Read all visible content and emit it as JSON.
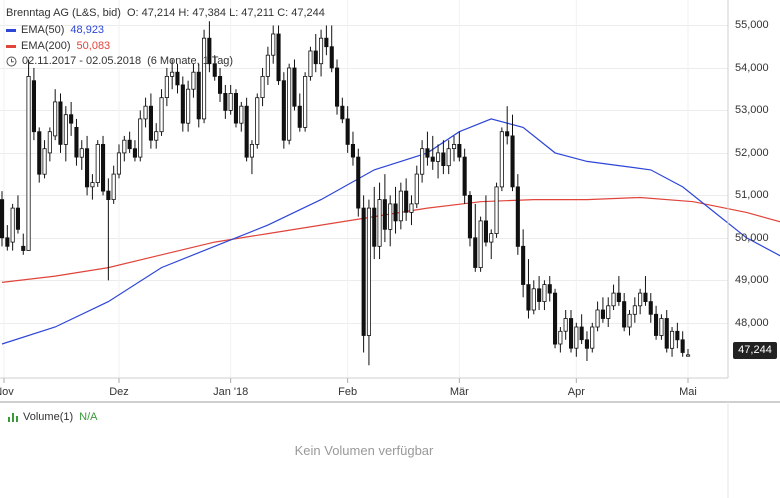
{
  "header": {
    "instrument": "Brenntag AG (L&S, bid)",
    "ohlc": "O: 47,214  H: 47,384  L: 47,211  C: 47,244",
    "ema50_label": "EMA(50)",
    "ema50_value": "48,923",
    "ema200_label": "EMA(200)",
    "ema200_value": "50,083",
    "period": "02.11.2017 - 02.05.2018",
    "period_detail": "(6 Monate, 1 Tag)"
  },
  "colors": {
    "ema50": "#2d46d6",
    "ema200": "#e0443a",
    "candle": "#111111",
    "volume": "#3a9a3a"
  },
  "last_price_badge": "47,244",
  "volume": {
    "title": "Volume(1)",
    "value": "N/A",
    "empty_message": "Kein Volumen verfügbar"
  },
  "chart_data": {
    "type": "candlestick",
    "y_axis": {
      "ticks": [
        48000,
        49000,
        50000,
        51000,
        52000,
        53000,
        54000,
        55000
      ],
      "tick_labels": [
        "48,000",
        "49,000",
        "50,000",
        "51,000",
        "52,000",
        "53,000",
        "54,000",
        "55,000"
      ],
      "range": [
        46700,
        55600
      ],
      "position": "right"
    },
    "x_axis": {
      "labels": [
        "Nov",
        "Dez",
        "Jan '18",
        "Feb",
        "Mär",
        "Apr",
        "Mai"
      ]
    },
    "grid": true,
    "series": [
      {
        "name": "EMA(50)",
        "type": "line",
        "points": [
          [
            0,
            47500
          ],
          [
            10,
            47900
          ],
          [
            20,
            48500
          ],
          [
            30,
            49300
          ],
          [
            40,
            49800
          ],
          [
            50,
            50300
          ],
          [
            60,
            50900
          ],
          [
            70,
            51600
          ],
          [
            80,
            52000
          ],
          [
            86,
            52500
          ],
          [
            92,
            52800
          ],
          [
            98,
            52600
          ],
          [
            104,
            52000
          ],
          [
            110,
            51800
          ],
          [
            116,
            51700
          ],
          [
            122,
            51600
          ],
          [
            128,
            51200
          ],
          [
            134,
            50600
          ],
          [
            140,
            50000
          ],
          [
            146,
            49600
          ],
          [
            152,
            49200
          ],
          [
            156,
            48923
          ]
        ]
      },
      {
        "name": "EMA(200)",
        "type": "line",
        "points": [
          [
            0,
            48950
          ],
          [
            10,
            49100
          ],
          [
            20,
            49300
          ],
          [
            30,
            49600
          ],
          [
            40,
            49900
          ],
          [
            50,
            50100
          ],
          [
            60,
            50300
          ],
          [
            70,
            50500
          ],
          [
            80,
            50700
          ],
          [
            90,
            50850
          ],
          [
            100,
            50900
          ],
          [
            110,
            50900
          ],
          [
            120,
            50950
          ],
          [
            130,
            50850
          ],
          [
            140,
            50600
          ],
          [
            150,
            50250
          ],
          [
            156,
            50083
          ]
        ]
      },
      {
        "name": "Brenntag AG",
        "type": "candlestick",
        "ohlc": [
          [
            50900,
            51100,
            49800,
            50000
          ],
          [
            50000,
            50300,
            49700,
            49800
          ],
          [
            49900,
            50800,
            49700,
            50700
          ],
          [
            50700,
            51000,
            50100,
            50200
          ],
          [
            49800,
            50100,
            49600,
            49700
          ],
          [
            49700,
            54200,
            49700,
            53800
          ],
          [
            53700,
            54000,
            52300,
            52500
          ],
          [
            52500,
            52600,
            51300,
            51500
          ],
          [
            51500,
            52300,
            51400,
            52100
          ],
          [
            52000,
            52600,
            51800,
            52500
          ],
          [
            52400,
            53500,
            52300,
            53200
          ],
          [
            53200,
            53400,
            52000,
            52200
          ],
          [
            52200,
            53100,
            51800,
            52900
          ],
          [
            52900,
            53200,
            52400,
            52700
          ],
          [
            52600,
            52800,
            51700,
            51900
          ],
          [
            51900,
            52300,
            51600,
            52100
          ],
          [
            52100,
            52400,
            51000,
            51200
          ],
          [
            51200,
            51500,
            50900,
            51300
          ],
          [
            51300,
            52300,
            51200,
            52200
          ],
          [
            52200,
            52400,
            51000,
            51100
          ],
          [
            51100,
            51400,
            49000,
            50900
          ],
          [
            50900,
            51700,
            50800,
            51500
          ],
          [
            51500,
            52200,
            51400,
            52000
          ],
          [
            52000,
            52400,
            51800,
            52300
          ],
          [
            52300,
            52500,
            52000,
            52100
          ],
          [
            52100,
            52300,
            51800,
            51900
          ],
          [
            51900,
            53000,
            51800,
            52800
          ],
          [
            52800,
            53300,
            52600,
            53100
          ],
          [
            53100,
            53400,
            52100,
            52300
          ],
          [
            52300,
            52700,
            52100,
            52500
          ],
          [
            52500,
            53500,
            52400,
            53300
          ],
          [
            53300,
            54000,
            53100,
            53800
          ],
          [
            53800,
            54200,
            53500,
            53900
          ],
          [
            53900,
            54100,
            53400,
            53600
          ],
          [
            53600,
            53800,
            52500,
            52700
          ],
          [
            52700,
            53700,
            52500,
            53500
          ],
          [
            53500,
            54100,
            53300,
            53900
          ],
          [
            53900,
            54100,
            52600,
            52800
          ],
          [
            52800,
            54900,
            52700,
            54700
          ],
          [
            54700,
            55100,
            53900,
            54100
          ],
          [
            54100,
            54300,
            53700,
            53800
          ],
          [
            53800,
            54000,
            53200,
            53400
          ],
          [
            53400,
            53600,
            52800,
            53000
          ],
          [
            53000,
            53600,
            52900,
            53400
          ],
          [
            53400,
            53500,
            52600,
            52700
          ],
          [
            52700,
            53200,
            52500,
            53100
          ],
          [
            53100,
            53300,
            51800,
            51900
          ],
          [
            51900,
            52300,
            51500,
            52200
          ],
          [
            52200,
            53400,
            52100,
            53300
          ],
          [
            53300,
            54000,
            53100,
            53800
          ],
          [
            53800,
            54500,
            53600,
            54300
          ],
          [
            54300,
            55000,
            54100,
            54800
          ],
          [
            54800,
            55000,
            53600,
            53700
          ],
          [
            53700,
            53900,
            52100,
            52300
          ],
          [
            52300,
            54100,
            52200,
            54000
          ],
          [
            54000,
            54200,
            53000,
            53100
          ],
          [
            53100,
            53400,
            52500,
            52600
          ],
          [
            52600,
            53900,
            52500,
            53800
          ],
          [
            53800,
            54500,
            53700,
            54400
          ],
          [
            54400,
            54800,
            53900,
            54100
          ],
          [
            54100,
            54900,
            53800,
            54700
          ],
          [
            54700,
            55000,
            54300,
            54500
          ],
          [
            54500,
            55000,
            53900,
            54000
          ],
          [
            54000,
            54200,
            52900,
            53100
          ],
          [
            53100,
            53300,
            52700,
            52800
          ],
          [
            52800,
            53100,
            52000,
            52200
          ],
          [
            52200,
            52500,
            51700,
            51900
          ],
          [
            51900,
            52100,
            50500,
            50700
          ],
          [
            50700,
            51000,
            47300,
            47700
          ],
          [
            47700,
            50900,
            47000,
            50700
          ],
          [
            50700,
            51200,
            49500,
            49800
          ],
          [
            49800,
            51300,
            49500,
            50900
          ],
          [
            50900,
            51500,
            49900,
            50200
          ],
          [
            50200,
            51000,
            49800,
            50800
          ],
          [
            50800,
            51200,
            50100,
            50400
          ],
          [
            50400,
            51300,
            50200,
            51100
          ],
          [
            51100,
            51400,
            50400,
            50600
          ],
          [
            50600,
            51000,
            50300,
            50800
          ],
          [
            50800,
            51700,
            50700,
            51500
          ],
          [
            51500,
            52300,
            51300,
            52100
          ],
          [
            52100,
            52500,
            51700,
            51900
          ],
          [
            51900,
            52400,
            51600,
            51800
          ],
          [
            51800,
            52200,
            51400,
            52000
          ],
          [
            52000,
            52300,
            51500,
            51700
          ],
          [
            51700,
            52300,
            51500,
            52100
          ],
          [
            52100,
            52400,
            51800,
            52200
          ],
          [
            52200,
            52500,
            51800,
            51900
          ],
          [
            51900,
            52100,
            50800,
            51000
          ],
          [
            51000,
            51100,
            49800,
            50000
          ],
          [
            50000,
            50800,
            49200,
            49300
          ],
          [
            49300,
            50500,
            49200,
            50400
          ],
          [
            50400,
            51000,
            49800,
            49900
          ],
          [
            49900,
            50200,
            49500,
            50100
          ],
          [
            50100,
            51300,
            50000,
            51200
          ],
          [
            51200,
            52600,
            51100,
            52500
          ],
          [
            52500,
            53100,
            52200,
            52400
          ],
          [
            52400,
            52900,
            51100,
            51200
          ],
          [
            51200,
            51500,
            49600,
            49800
          ],
          [
            49800,
            50200,
            48600,
            48900
          ],
          [
            48900,
            49500,
            48100,
            48300
          ],
          [
            48300,
            49000,
            48200,
            48800
          ],
          [
            48800,
            49100,
            48300,
            48500
          ],
          [
            48500,
            49000,
            48300,
            48900
          ],
          [
            48900,
            49100,
            48500,
            48700
          ],
          [
            48700,
            48800,
            47400,
            47500
          ],
          [
            47500,
            47900,
            47300,
            47800
          ],
          [
            47800,
            48300,
            47600,
            48100
          ],
          [
            48100,
            48300,
            47300,
            47400
          ],
          [
            47400,
            48000,
            47200,
            47900
          ],
          [
            47900,
            48200,
            47500,
            47600
          ],
          [
            47600,
            47800,
            47100,
            47400
          ],
          [
            47400,
            48000,
            47300,
            47900
          ],
          [
            47900,
            48500,
            47800,
            48300
          ],
          [
            48300,
            48600,
            48000,
            48100
          ],
          [
            48100,
            48600,
            47900,
            48400
          ],
          [
            48400,
            48900,
            48300,
            48700
          ],
          [
            48700,
            49100,
            48400,
            48500
          ],
          [
            48500,
            48700,
            47800,
            47900
          ],
          [
            47900,
            48300,
            47700,
            48200
          ],
          [
            48200,
            48600,
            48000,
            48400
          ],
          [
            48400,
            48800,
            48200,
            48700
          ],
          [
            48700,
            49100,
            48400,
            48500
          ],
          [
            48500,
            48700,
            48000,
            48200
          ],
          [
            48200,
            48400,
            47600,
            47700
          ],
          [
            47700,
            48200,
            47600,
            48100
          ],
          [
            48100,
            48300,
            47300,
            47400
          ],
          [
            47400,
            47900,
            47200,
            47800
          ],
          [
            47800,
            48000,
            47400,
            47600
          ],
          [
            47600,
            47800,
            47200,
            47300
          ],
          [
            47214,
            47384,
            47211,
            47244
          ]
        ]
      }
    ]
  }
}
